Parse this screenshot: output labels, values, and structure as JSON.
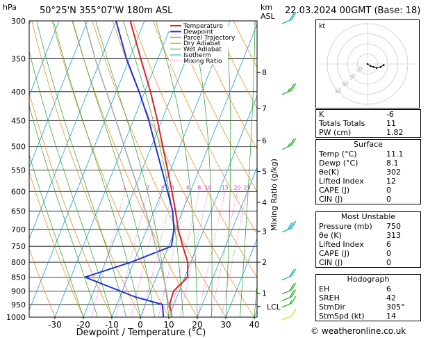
{
  "header": {
    "location": "50°25'N  355°07'W  180m  ASL",
    "datetime": "22.03.2024  00GMT  (Base: 18)"
  },
  "chart_data": {
    "type": "line",
    "title": "",
    "xlabel": "Dewpoint / Temperature (°C)",
    "ylabel": "hPa",
    "pressure_ticks": [
      300,
      350,
      400,
      450,
      500,
      550,
      600,
      650,
      700,
      750,
      800,
      850,
      900,
      950,
      1000
    ],
    "temp_ticks": [
      -30,
      -20,
      -10,
      0,
      10,
      20,
      30,
      40
    ],
    "xlim": [
      -40,
      40
    ],
    "ylim": [
      1000,
      300
    ],
    "km_label": "km",
    "asl_label": "ASL",
    "km_ticks": [
      {
        "km": "1",
        "p": 907
      },
      {
        "km": "2",
        "p": 800
      },
      {
        "km": "3",
        "p": 705
      },
      {
        "km": "4",
        "p": 627
      },
      {
        "km": "5",
        "p": 553
      },
      {
        "km": "6",
        "p": 488
      },
      {
        "km": "7",
        "p": 428
      },
      {
        "km": "8",
        "p": 370
      }
    ],
    "lcl_label": "LCL",
    "lcl_pressure": 958,
    "mixing_axis_label": "Mixing Ratio (g/kg)",
    "mixing_ratio_labels": [
      "1",
      "2",
      "3",
      "4",
      "6",
      "8",
      "10",
      "15",
      "20",
      "25"
    ],
    "mixing_ratio_values": [
      1,
      2,
      3,
      4,
      6,
      8,
      10,
      15,
      20,
      25
    ],
    "legend": [
      "Temperature",
      "Dewpoint",
      "Parcel Trajectory",
      "Dry Adiabat",
      "Wet Adiabat",
      "Isotherm",
      "Mixing Ratio"
    ],
    "legend_placement": "top-left",
    "colors": {
      "temperature": "#e02020",
      "dewpoint": "#2030e0",
      "parcel": "#a8a8a8",
      "dry_adiabat": "#f08000",
      "wet_adiabat": "#20a020",
      "isotherm": "#10a0e0",
      "mixing_ratio": "#e040c0"
    },
    "series": [
      {
        "name": "Temperature",
        "points": [
          [
            1000,
            11.1
          ],
          [
            950,
            8.5
          ],
          [
            900,
            8
          ],
          [
            850,
            11
          ],
          [
            800,
            9
          ],
          [
            750,
            5
          ],
          [
            700,
            1
          ],
          [
            650,
            -2.5
          ],
          [
            600,
            -6.5
          ],
          [
            550,
            -11
          ],
          [
            500,
            -16
          ],
          [
            450,
            -21.5
          ],
          [
            400,
            -28
          ],
          [
            350,
            -36
          ],
          [
            300,
            -45
          ]
        ]
      },
      {
        "name": "Dewpoint",
        "points": [
          [
            1000,
            8.1
          ],
          [
            950,
            6
          ],
          [
            920,
            -5
          ],
          [
            850,
            -25
          ],
          [
            800,
            -11
          ],
          [
            750,
            1
          ],
          [
            700,
            -0.5
          ],
          [
            650,
            -3.5
          ],
          [
            600,
            -8
          ],
          [
            550,
            -13
          ],
          [
            500,
            -18.5
          ],
          [
            450,
            -24.5
          ],
          [
            400,
            -32
          ],
          [
            350,
            -41
          ],
          [
            300,
            -50
          ]
        ]
      },
      {
        "name": "Parcel Trajectory",
        "points": [
          [
            1000,
            11.1
          ],
          [
            958,
            8.5
          ],
          [
            900,
            5.5
          ],
          [
            850,
            2.5
          ],
          [
            800,
            -0.8
          ],
          [
            750,
            -4.5
          ],
          [
            700,
            -8.5
          ],
          [
            650,
            -13
          ],
          [
            600,
            -18
          ],
          [
            550,
            -23.5
          ],
          [
            500,
            -29.5
          ],
          [
            450,
            -36
          ],
          [
            400,
            -43.5
          ],
          [
            350,
            -52
          ],
          [
            300,
            -61
          ]
        ]
      }
    ],
    "wind_barbs": [
      {
        "p": 1000,
        "speed_kt": 10,
        "color": "#c8d800"
      },
      {
        "p": 950,
        "speed_kt": 15,
        "color": "#20b020"
      },
      {
        "p": 925,
        "speed_kt": 20,
        "color": "#20b020"
      },
      {
        "p": 900,
        "speed_kt": 20,
        "color": "#20b020"
      },
      {
        "p": 850,
        "speed_kt": 20,
        "color": "#00b0a0"
      },
      {
        "p": 700,
        "speed_kt": 30,
        "color": "#10a0e0"
      },
      {
        "p": 500,
        "speed_kt": 25,
        "color": "#20b020"
      },
      {
        "p": 400,
        "speed_kt": 25,
        "color": "#20b020"
      },
      {
        "p": 300,
        "speed_kt": 20,
        "color": "#00b0a0"
      }
    ]
  },
  "hodograph": {
    "unit_label": "kt",
    "ring_labels": [
      "10",
      "20",
      "30",
      "40"
    ],
    "trace": [
      [
        0,
        0
      ],
      [
        3,
        -2
      ],
      [
        6,
        -3
      ],
      [
        9,
        -4
      ],
      [
        13,
        -3
      ],
      [
        16,
        -1
      ]
    ]
  },
  "indices": {
    "rows": [
      {
        "label": "K",
        "value": "-6"
      },
      {
        "label": "Totals Totals",
        "value": "11"
      },
      {
        "label": "PW (cm)",
        "value": "1.82"
      }
    ]
  },
  "surface": {
    "title": "Surface",
    "rows": [
      {
        "label": "Temp (°C)",
        "value": "11.1"
      },
      {
        "label": "Dewp (°C)",
        "value": "8.1"
      },
      {
        "label": "θe(K)",
        "value": "302"
      },
      {
        "label": "Lifted Index",
        "value": "12"
      },
      {
        "label": "CAPE (J)",
        "value": "0"
      },
      {
        "label": "CIN (J)",
        "value": "0"
      }
    ]
  },
  "most_unstable": {
    "title": "Most Unstable",
    "rows": [
      {
        "label": "Pressure (mb)",
        "value": "750"
      },
      {
        "label": "θe (K)",
        "value": "313"
      },
      {
        "label": "Lifted Index",
        "value": "6"
      },
      {
        "label": "CAPE (J)",
        "value": "0"
      },
      {
        "label": "CIN (J)",
        "value": "0"
      }
    ]
  },
  "hodo_table": {
    "title": "Hodograph",
    "rows": [
      {
        "label": "EH",
        "value": "6"
      },
      {
        "label": "SREH",
        "value": "42"
      },
      {
        "label": "StmDir",
        "value": "305°"
      },
      {
        "label": "StmSpd (kt)",
        "value": "14"
      }
    ]
  },
  "footer": {
    "copyright": "© weatheronline.co.uk"
  }
}
